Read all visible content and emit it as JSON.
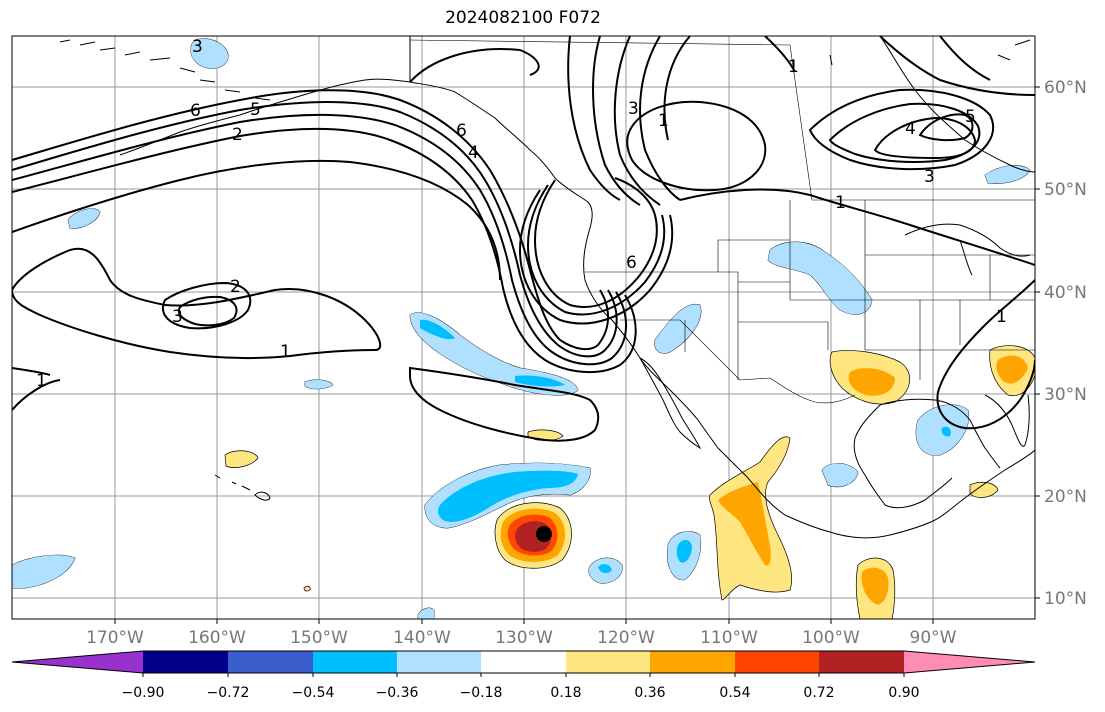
{
  "title": "2024082100 F072",
  "lat_labels": [
    "60°N",
    "50°N",
    "40°N",
    "30°N",
    "20°N",
    "10°N"
  ],
  "lon_labels": [
    "170°W",
    "160°W",
    "150°W",
    "140°W",
    "130°W",
    "120°W",
    "110°W",
    "100°W",
    "90°W"
  ],
  "contour_labels": [
    "1",
    "2",
    "3",
    "4",
    "5",
    "6"
  ],
  "colorbar": {
    "labels": [
      "−0.90",
      "−0.72",
      "−0.54",
      "−0.36",
      "−0.18",
      "0.18",
      "0.36",
      "0.54",
      "0.72",
      "0.90"
    ],
    "colors": [
      "#9932cc",
      "#00008b",
      "#3a5fcd",
      "#00bfff",
      "#b0e0ff",
      "#ffffff",
      "#ffe680",
      "#ffa500",
      "#ff4500",
      "#b22222",
      "#ff8cb4"
    ]
  },
  "fill_colors": {
    "light_blue": "#b0e0ff",
    "blue": "#00bfff",
    "light_yellow": "#ffe680",
    "orange": "#ffa500",
    "red_orange": "#ff4500",
    "dark_red": "#b22222"
  }
}
